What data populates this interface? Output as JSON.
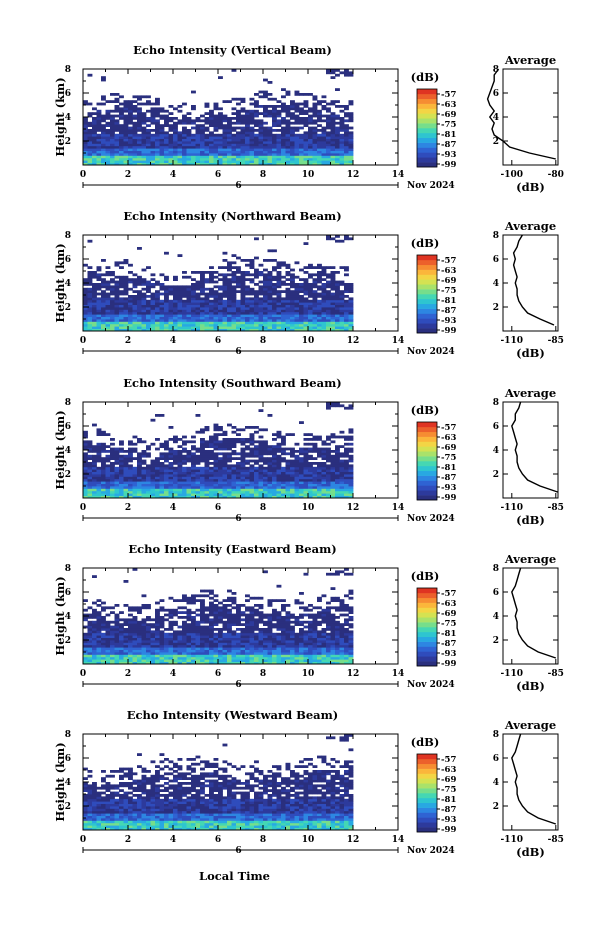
{
  "figure": {
    "xlabel": "Local Time"
  },
  "chart_data": [
    {
      "type": "heatmap",
      "title": "Echo Intensity (Vertical Beam)",
      "ylabel": "Height (km)",
      "xlabel": "Local Time",
      "x_ticks": [
        "0",
        "2",
        "4",
        "6",
        "8",
        "10",
        "12",
        "14"
      ],
      "y_ticks": [
        "2",
        "4",
        "6",
        "8"
      ],
      "xlim": [
        0,
        14
      ],
      "ylim": [
        0,
        8
      ],
      "date_marker": "6",
      "date_label": "Nov 2024",
      "colorbar": {
        "label": "(dB)",
        "ticks": [
          "-57",
          "-63",
          "-69",
          "-75",
          "-81",
          "-87",
          "-93",
          "-99"
        ]
      },
      "profile": {
        "title": "Average",
        "xlabel": "(dB)",
        "x_ticks": [
          "-100",
          "-80"
        ],
        "y_ticks": [
          "2",
          "4",
          "6",
          "8"
        ],
        "heights": [
          0.5,
          1,
          1.5,
          2,
          2.5,
          3,
          3.5,
          4,
          4.5,
          5,
          5.5,
          6,
          6.5,
          7,
          7.5,
          8
        ],
        "values": [
          -80,
          -92,
          -101,
          -104,
          -108,
          -109,
          -108,
          -110,
          -108,
          -110,
          -111,
          -110,
          -109,
          -108,
          -108,
          -106
        ]
      }
    },
    {
      "type": "heatmap",
      "title": "Echo Intensity (Northward Beam)",
      "ylabel": "Height (km)",
      "xlabel": "Local Time",
      "x_ticks": [
        "0",
        "2",
        "4",
        "6",
        "8",
        "10",
        "12",
        "14"
      ],
      "y_ticks": [
        "2",
        "4",
        "6",
        "8"
      ],
      "xlim": [
        0,
        14
      ],
      "ylim": [
        0,
        8
      ],
      "date_marker": "6",
      "date_label": "Nov 2024",
      "colorbar": {
        "label": "(dB)",
        "ticks": [
          "-57",
          "-63",
          "-69",
          "-75",
          "-81",
          "-87",
          "-93",
          "-99"
        ]
      },
      "profile": {
        "title": "Average",
        "xlabel": "(dB)",
        "x_ticks": [
          "-110",
          "-85"
        ],
        "y_ticks": [
          "2",
          "4",
          "6",
          "8"
        ],
        "heights": [
          0.5,
          1,
          1.5,
          2,
          2.5,
          3,
          3.5,
          4,
          4.5,
          5,
          5.5,
          6,
          6.5,
          7,
          7.5,
          8
        ],
        "values": [
          -86,
          -94,
          -101,
          -104,
          -106,
          -107,
          -107,
          -108,
          -107,
          -108,
          -109,
          -108,
          -109,
          -107,
          -106,
          -104
        ]
      }
    },
    {
      "type": "heatmap",
      "title": "Echo Intensity (Southward Beam)",
      "ylabel": "Height (km)",
      "xlabel": "Local Time",
      "x_ticks": [
        "0",
        "2",
        "4",
        "6",
        "8",
        "10",
        "12",
        "14"
      ],
      "y_ticks": [
        "2",
        "4",
        "6",
        "8"
      ],
      "xlim": [
        0,
        14
      ],
      "ylim": [
        0,
        8
      ],
      "date_marker": "6",
      "date_label": "Nov 2024",
      "colorbar": {
        "label": "(dB)",
        "ticks": [
          "-57",
          "-63",
          "-69",
          "-75",
          "-81",
          "-87",
          "-93",
          "-99"
        ]
      },
      "profile": {
        "title": "Average",
        "xlabel": "(dB)",
        "x_ticks": [
          "-110",
          "-85"
        ],
        "y_ticks": [
          "2",
          "4",
          "6",
          "8"
        ],
        "heights": [
          0.5,
          1,
          1.5,
          2,
          2.5,
          3,
          3.5,
          4,
          4.5,
          5,
          5.5,
          6,
          6.5,
          7,
          7.5,
          8
        ],
        "values": [
          -84,
          -94,
          -101,
          -104,
          -106,
          -107,
          -107,
          -108,
          -107,
          -108,
          -109,
          -110,
          -108,
          -108,
          -106,
          -105
        ]
      }
    },
    {
      "type": "heatmap",
      "title": "Echo Intensity (Eastward Beam)",
      "ylabel": "Height (km)",
      "xlabel": "Local Time",
      "x_ticks": [
        "0",
        "2",
        "4",
        "6",
        "8",
        "10",
        "12",
        "14"
      ],
      "y_ticks": [
        "2",
        "4",
        "6",
        "8"
      ],
      "xlim": [
        0,
        14
      ],
      "ylim": [
        0,
        8
      ],
      "date_marker": "6",
      "date_label": "Nov 2024",
      "colorbar": {
        "label": "(dB)",
        "ticks": [
          "-57",
          "-63",
          "-69",
          "-75",
          "-81",
          "-87",
          "-93",
          "-99"
        ]
      },
      "profile": {
        "title": "Average",
        "xlabel": "(dB)",
        "x_ticks": [
          "-110",
          "-85"
        ],
        "y_ticks": [
          "2",
          "4",
          "6",
          "8"
        ],
        "heights": [
          0.5,
          1,
          1.5,
          2,
          2.5,
          3,
          3.5,
          4,
          4.5,
          5,
          5.5,
          6,
          6.5,
          7,
          7.5,
          8
        ],
        "values": [
          -85,
          -95,
          -101,
          -104,
          -106,
          -107,
          -107,
          -108,
          -107,
          -108,
          -109,
          -110,
          -108,
          -107,
          -106,
          -105
        ]
      }
    },
    {
      "type": "heatmap",
      "title": "Echo Intensity (Westward Beam)",
      "ylabel": "Height (km)",
      "xlabel": "Local Time",
      "x_ticks": [
        "0",
        "2",
        "4",
        "6",
        "8",
        "10",
        "12",
        "14"
      ],
      "y_ticks": [
        "2",
        "4",
        "6",
        "8"
      ],
      "xlim": [
        0,
        14
      ],
      "ylim": [
        0,
        8
      ],
      "date_marker": "6",
      "date_label": "Nov 2024",
      "colorbar": {
        "label": "(dB)",
        "ticks": [
          "-57",
          "-63",
          "-69",
          "-75",
          "-81",
          "-87",
          "-93",
          "-99"
        ]
      },
      "profile": {
        "title": "Average",
        "xlabel": "(dB)",
        "x_ticks": [
          "-110",
          "-85"
        ],
        "y_ticks": [
          "2",
          "4",
          "6",
          "8"
        ],
        "heights": [
          0.5,
          1,
          1.5,
          2,
          2.5,
          3,
          3.5,
          4,
          4.5,
          5,
          5.5,
          6,
          6.5,
          7,
          7.5,
          8
        ],
        "values": [
          -85,
          -95,
          -101,
          -104,
          -106,
          -107,
          -107,
          -108,
          -107,
          -108,
          -109,
          -110,
          -108,
          -107,
          -106,
          -105
        ]
      }
    }
  ]
}
